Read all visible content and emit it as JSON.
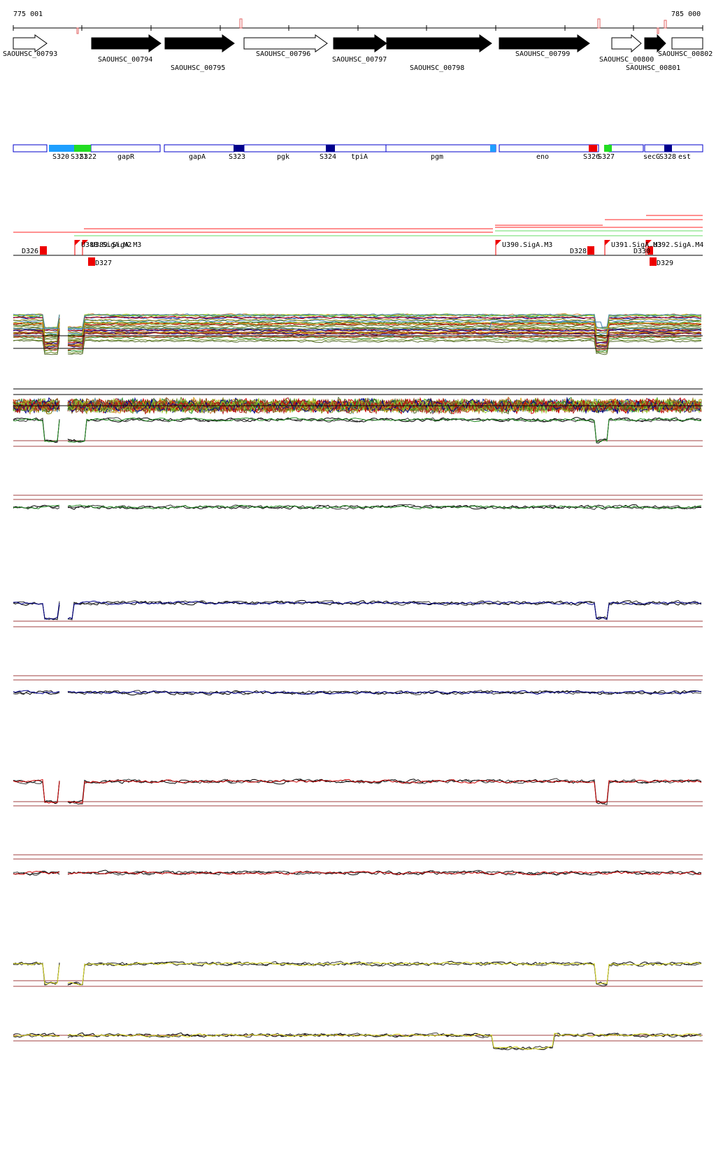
{
  "ruler": {
    "start_label": "775 001",
    "end_label": "785 000"
  },
  "genes": [
    {
      "id": "SAOUHSC_00793",
      "filled": false
    },
    {
      "id": "SAOUHSC_00794",
      "filled": true
    },
    {
      "id": "SAOUHSC_00795",
      "filled": true
    },
    {
      "id": "SAOUHSC_00796",
      "filled": false
    },
    {
      "id": "SAOUHSC_00797",
      "filled": true
    },
    {
      "id": "SAOUHSC_00798",
      "filled": true
    },
    {
      "id": "SAOUHSC_00799",
      "filled": true
    },
    {
      "id": "SAOUHSC_00800",
      "filled": false
    },
    {
      "id": "SAOUHSC_00801",
      "filled": true
    },
    {
      "id": "SAOUHSC_00802",
      "filled": false
    }
  ],
  "segment_labels": [
    "S320",
    "S321",
    "S322",
    "gapR",
    "gapA",
    "S323",
    "pgk",
    "S324",
    "tpiA",
    "pgm",
    "eno",
    "S326",
    "S327",
    "secG",
    "S328",
    "est"
  ],
  "segment_colors": {
    "outline": "#0000cc",
    "light_blue": "#1e9fff",
    "green": "#22dd22",
    "dark_blue": "#00008b",
    "red": "#ee0000"
  },
  "features": [
    "D326",
    "U388.SigA.M2",
    "U389.SigA.M3",
    "D327",
    "U390.SigA.M3",
    "D328",
    "U391.SigA.M3",
    "D330",
    "U392.SigA.M4",
    "D329"
  ],
  "track_colors": [
    "#6b8e23",
    "#228b22",
    "#00008b",
    "#cc0000",
    "#dddd22"
  ]
}
